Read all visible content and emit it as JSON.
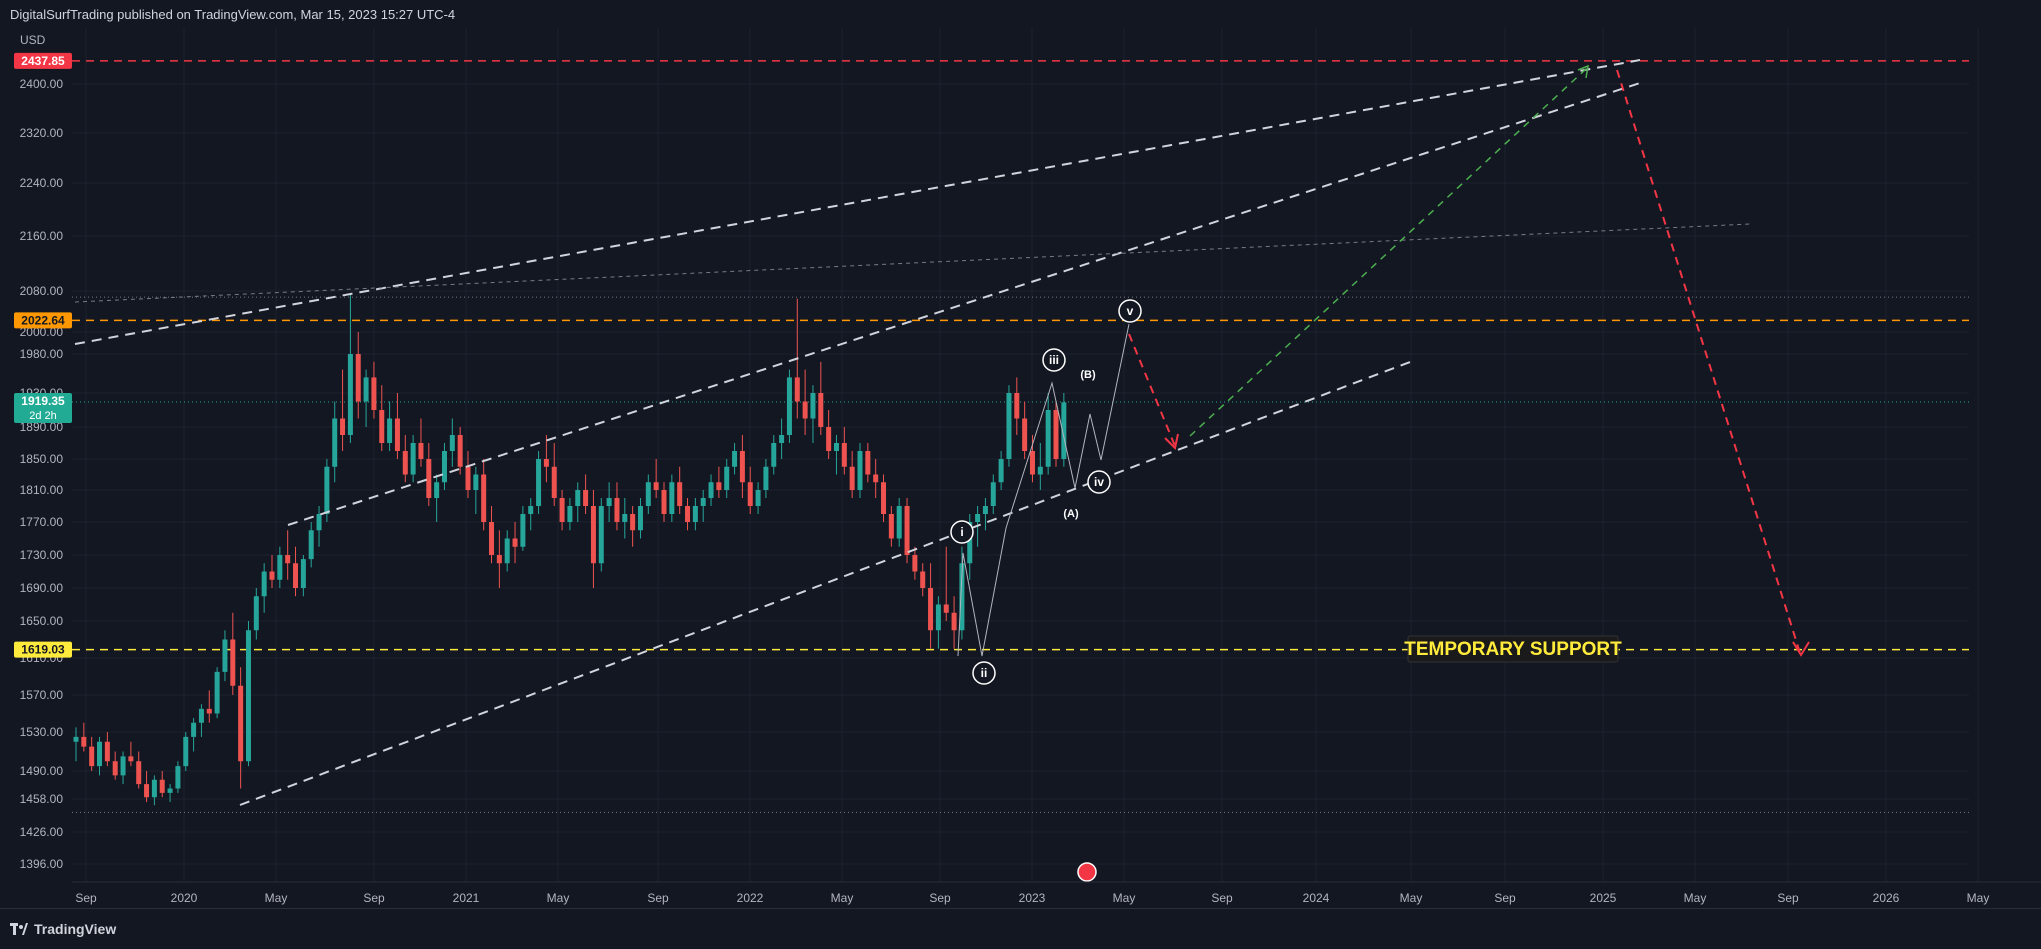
{
  "header": {
    "published": "DigitalSurfTrading published on TradingView.com, Mar 15, 2023 15:27 UTC-4"
  },
  "footer": {
    "brand": "TradingView"
  },
  "price_scale": {
    "currency": "USD"
  },
  "chart_data": {
    "type": "candlestick",
    "instrument_currency": "USD",
    "y_ticks": [
      1396,
      1426,
      1458,
      1490,
      1530,
      1570,
      1610,
      1650,
      1690,
      1730,
      1770,
      1810,
      1850,
      1890,
      1930,
      1980,
      2000,
      2080,
      2160,
      2240,
      2320,
      2400
    ],
    "y_tick_labels": [
      "1396.00",
      "1426.00",
      "1458.00",
      "1490.00",
      "1530.00",
      "1570.00",
      "1610.00",
      "1650.00",
      "1690.00",
      "1730.00",
      "1770.00",
      "1810.00",
      "1850.00",
      "1890.00",
      "1930.00",
      "1980.00",
      "2000.00",
      "2080.00",
      "2160.00",
      "2240.00",
      "2320.00",
      "2400.00"
    ],
    "x_ticks": [
      "Sep",
      "2020",
      "May",
      "Sep",
      "2021",
      "May",
      "Sep",
      "2022",
      "May",
      "Sep",
      "2023",
      "May",
      "Sep",
      "2024",
      "May",
      "Sep",
      "2025",
      "May",
      "Sep",
      "2026",
      "May"
    ],
    "price_labels": [
      {
        "value": "2437.85",
        "color": "#f23645"
      },
      {
        "value": "2022.64",
        "color": "#ff9800"
      },
      {
        "value": "1919.35",
        "sub": "2d 2h",
        "color": "#22ab94"
      },
      {
        "value": "1619.03",
        "color": "#ffeb3b"
      }
    ],
    "wave_labels": [
      "i",
      "ii",
      "iii",
      "iv",
      "v",
      "(A)",
      "(B)"
    ],
    "annotation": "TEMPORARY SUPPORT",
    "candles": [
      [
        0,
        1520,
        1535,
        1500,
        1525
      ],
      [
        1,
        1525,
        1540,
        1510,
        1515
      ],
      [
        2,
        1515,
        1525,
        1490,
        1495
      ],
      [
        3,
        1495,
        1525,
        1485,
        1520
      ],
      [
        4,
        1520,
        1530,
        1495,
        1500
      ],
      [
        5,
        1500,
        1510,
        1480,
        1485
      ],
      [
        6,
        1485,
        1510,
        1475,
        1505
      ],
      [
        7,
        1505,
        1520,
        1495,
        1500
      ],
      [
        8,
        1500,
        1510,
        1470,
        1475
      ],
      [
        9,
        1475,
        1490,
        1455,
        1460
      ],
      [
        10,
        1460,
        1485,
        1452,
        1480
      ],
      [
        11,
        1480,
        1490,
        1460,
        1465
      ],
      [
        12,
        1465,
        1475,
        1455,
        1470
      ],
      [
        13,
        1470,
        1500,
        1465,
        1495
      ],
      [
        14,
        1495,
        1530,
        1490,
        1525
      ],
      [
        15,
        1525,
        1545,
        1510,
        1540
      ],
      [
        16,
        1540,
        1560,
        1525,
        1555
      ],
      [
        17,
        1555,
        1575,
        1540,
        1550
      ],
      [
        18,
        1550,
        1600,
        1545,
        1595
      ],
      [
        19,
        1595,
        1640,
        1585,
        1630
      ],
      [
        20,
        1630,
        1660,
        1570,
        1580
      ],
      [
        21,
        1580,
        1600,
        1470,
        1500
      ],
      [
        22,
        1500,
        1650,
        1495,
        1640
      ],
      [
        23,
        1640,
        1690,
        1630,
        1680
      ],
      [
        24,
        1680,
        1720,
        1660,
        1710
      ],
      [
        25,
        1710,
        1730,
        1690,
        1700
      ],
      [
        26,
        1700,
        1740,
        1690,
        1730
      ],
      [
        27,
        1730,
        1760,
        1700,
        1720
      ],
      [
        28,
        1720,
        1740,
        1680,
        1690
      ],
      [
        29,
        1690,
        1730,
        1680,
        1725
      ],
      [
        30,
        1725,
        1770,
        1715,
        1760
      ],
      [
        31,
        1760,
        1790,
        1740,
        1780
      ],
      [
        32,
        1780,
        1850,
        1770,
        1840
      ],
      [
        33,
        1840,
        1920,
        1820,
        1900
      ],
      [
        34,
        1900,
        1960,
        1860,
        1880
      ],
      [
        35,
        1880,
        2075,
        1870,
        1980
      ],
      [
        36,
        1980,
        2000,
        1900,
        1920
      ],
      [
        37,
        1920,
        1960,
        1890,
        1950
      ],
      [
        38,
        1950,
        1970,
        1900,
        1910
      ],
      [
        39,
        1910,
        1940,
        1860,
        1870
      ],
      [
        40,
        1870,
        1920,
        1860,
        1900
      ],
      [
        41,
        1900,
        1930,
        1850,
        1860
      ],
      [
        42,
        1860,
        1880,
        1820,
        1830
      ],
      [
        43,
        1830,
        1880,
        1820,
        1870
      ],
      [
        44,
        1870,
        1900,
        1840,
        1850
      ],
      [
        45,
        1850,
        1870,
        1790,
        1800
      ],
      [
        46,
        1800,
        1830,
        1770,
        1820
      ],
      [
        47,
        1820,
        1870,
        1810,
        1860
      ],
      [
        48,
        1860,
        1900,
        1840,
        1880
      ],
      [
        49,
        1880,
        1890,
        1830,
        1840
      ],
      [
        50,
        1840,
        1860,
        1800,
        1810
      ],
      [
        51,
        1810,
        1840,
        1780,
        1830
      ],
      [
        52,
        1830,
        1850,
        1760,
        1770
      ],
      [
        53,
        1770,
        1790,
        1720,
        1730
      ],
      [
        54,
        1730,
        1760,
        1690,
        1720
      ],
      [
        55,
        1720,
        1760,
        1710,
        1750
      ],
      [
        56,
        1750,
        1770,
        1720,
        1740
      ],
      [
        57,
        1740,
        1790,
        1735,
        1780
      ],
      [
        58,
        1780,
        1800,
        1760,
        1790
      ],
      [
        59,
        1790,
        1860,
        1780,
        1850
      ],
      [
        60,
        1850,
        1880,
        1820,
        1840
      ],
      [
        61,
        1840,
        1870,
        1790,
        1800
      ],
      [
        62,
        1800,
        1810,
        1760,
        1770
      ],
      [
        63,
        1770,
        1800,
        1760,
        1790
      ],
      [
        64,
        1790,
        1820,
        1770,
        1810
      ],
      [
        65,
        1810,
        1830,
        1780,
        1790
      ],
      [
        66,
        1790,
        1810,
        1690,
        1720
      ],
      [
        67,
        1720,
        1800,
        1710,
        1790
      ],
      [
        68,
        1790,
        1820,
        1770,
        1800
      ],
      [
        69,
        1800,
        1820,
        1760,
        1770
      ],
      [
        70,
        1770,
        1800,
        1750,
        1780
      ],
      [
        71,
        1780,
        1790,
        1740,
        1760
      ],
      [
        72,
        1760,
        1800,
        1750,
        1790
      ],
      [
        73,
        1790,
        1830,
        1780,
        1820
      ],
      [
        74,
        1820,
        1850,
        1800,
        1810
      ],
      [
        75,
        1810,
        1820,
        1770,
        1780
      ],
      [
        76,
        1780,
        1830,
        1770,
        1820
      ],
      [
        77,
        1820,
        1840,
        1780,
        1790
      ],
      [
        78,
        1790,
        1800,
        1760,
        1770
      ],
      [
        79,
        1770,
        1800,
        1760,
        1790
      ],
      [
        80,
        1790,
        1810,
        1770,
        1800
      ],
      [
        81,
        1800,
        1830,
        1790,
        1820
      ],
      [
        82,
        1820,
        1840,
        1800,
        1810
      ],
      [
        83,
        1810,
        1850,
        1800,
        1840
      ],
      [
        84,
        1840,
        1870,
        1830,
        1860
      ],
      [
        85,
        1860,
        1880,
        1800,
        1820
      ],
      [
        86,
        1820,
        1840,
        1780,
        1790
      ],
      [
        87,
        1790,
        1820,
        1780,
        1810
      ],
      [
        88,
        1810,
        1850,
        1800,
        1840
      ],
      [
        89,
        1840,
        1880,
        1830,
        1870
      ],
      [
        90,
        1870,
        1900,
        1850,
        1880
      ],
      [
        91,
        1880,
        1960,
        1870,
        1950
      ],
      [
        92,
        1950,
        2065,
        1900,
        1920
      ],
      [
        93,
        1920,
        1960,
        1880,
        1900
      ],
      [
        94,
        1900,
        1940,
        1870,
        1930
      ],
      [
        95,
        1930,
        1970,
        1880,
        1890
      ],
      [
        96,
        1890,
        1910,
        1850,
        1860
      ],
      [
        97,
        1860,
        1880,
        1830,
        1870
      ],
      [
        98,
        1870,
        1890,
        1830,
        1840
      ],
      [
        99,
        1840,
        1860,
        1800,
        1810
      ],
      [
        100,
        1810,
        1870,
        1800,
        1860
      ],
      [
        101,
        1860,
        1870,
        1820,
        1830
      ],
      [
        102,
        1830,
        1850,
        1800,
        1820
      ],
      [
        103,
        1820,
        1830,
        1770,
        1780
      ],
      [
        104,
        1780,
        1790,
        1740,
        1750
      ],
      [
        105,
        1750,
        1800,
        1740,
        1790
      ],
      [
        106,
        1790,
        1800,
        1720,
        1730
      ],
      [
        107,
        1730,
        1740,
        1700,
        1710
      ],
      [
        108,
        1710,
        1720,
        1680,
        1690
      ],
      [
        109,
        1690,
        1720,
        1620,
        1640
      ],
      [
        110,
        1640,
        1680,
        1620,
        1670
      ],
      [
        111,
        1670,
        1740,
        1650,
        1660
      ],
      [
        112,
        1660,
        1680,
        1620,
        1640
      ],
      [
        113,
        1640,
        1740,
        1630,
        1720
      ],
      [
        114,
        1720,
        1780,
        1700,
        1770
      ],
      [
        115,
        1770,
        1790,
        1740,
        1780
      ],
      [
        116,
        1780,
        1800,
        1760,
        1790
      ],
      [
        117,
        1790,
        1830,
        1780,
        1820
      ],
      [
        118,
        1820,
        1860,
        1810,
        1850
      ],
      [
        119,
        1850,
        1940,
        1840,
        1930
      ],
      [
        120,
        1930,
        1950,
        1880,
        1900
      ],
      [
        121,
        1900,
        1920,
        1850,
        1860
      ],
      [
        122,
        1860,
        1880,
        1820,
        1830
      ],
      [
        123,
        1830,
        1870,
        1810,
        1840
      ],
      [
        124,
        1840,
        1930,
        1830,
        1910
      ],
      [
        125,
        1910,
        1920,
        1840,
        1850
      ],
      [
        126,
        1850,
        1930,
        1840,
        1919
      ]
    ]
  }
}
